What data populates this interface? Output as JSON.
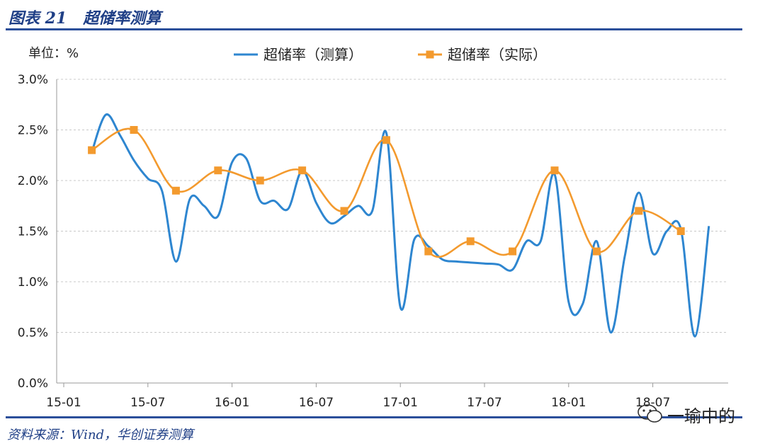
{
  "figure": {
    "title": "图表 21   超储率测算",
    "source": "资料来源：Wind，华创证券测算",
    "watermark": "一瑜中的"
  },
  "colors": {
    "estimated": "#2e86d0",
    "actual": "#f39a2e",
    "frame": "#2b4f9a",
    "grid": "#c8c8c8"
  },
  "chart_data": {
    "type": "line",
    "unit_label": "单位：%",
    "ylim": [
      0,
      3
    ],
    "yticks": [
      "0.0%",
      "0.5%",
      "1.0%",
      "1.5%",
      "2.0%",
      "2.5%",
      "3.0%"
    ],
    "xticks": [
      "15-01",
      "15-07",
      "16-01",
      "16-07",
      "17-01",
      "17-07",
      "18-01",
      "18-07"
    ],
    "grid": "horizontal dashed",
    "legend_position": "top-center",
    "series": [
      {
        "name": "超储率（测算）",
        "style": "line",
        "color": "#2e86d0",
        "points": [
          [
            "2015-03",
            2.28
          ],
          [
            "2015-04",
            2.65
          ],
          [
            "2015-05",
            2.45
          ],
          [
            "2015-06",
            2.2
          ],
          [
            "2015-07",
            2.02
          ],
          [
            "2015-08",
            1.9
          ],
          [
            "2015-09",
            1.2
          ],
          [
            "2015-10",
            1.82
          ],
          [
            "2015-11",
            1.75
          ],
          [
            "2015-12",
            1.65
          ],
          [
            "2016-01",
            2.18
          ],
          [
            "2016-02",
            2.22
          ],
          [
            "2016-03",
            1.8
          ],
          [
            "2016-04",
            1.8
          ],
          [
            "2016-05",
            1.72
          ],
          [
            "2016-06",
            2.1
          ],
          [
            "2016-07",
            1.78
          ],
          [
            "2016-08",
            1.58
          ],
          [
            "2016-09",
            1.65
          ],
          [
            "2016-10",
            1.75
          ],
          [
            "2016-11",
            1.7
          ],
          [
            "2016-12",
            2.47
          ],
          [
            "2017-01",
            0.75
          ],
          [
            "2017-02",
            1.42
          ],
          [
            "2017-03",
            1.35
          ],
          [
            "2017-04",
            1.22
          ],
          [
            "2017-05",
            1.2
          ],
          [
            "2017-06",
            1.19
          ],
          [
            "2017-07",
            1.18
          ],
          [
            "2017-08",
            1.17
          ],
          [
            "2017-09",
            1.12
          ],
          [
            "2017-10",
            1.4
          ],
          [
            "2017-11",
            1.4
          ],
          [
            "2017-12",
            2.06
          ],
          [
            "2018-01",
            0.8
          ],
          [
            "2018-02",
            0.78
          ],
          [
            "2018-03",
            1.4
          ],
          [
            "2018-04",
            0.5
          ],
          [
            "2018-05",
            1.25
          ],
          [
            "2018-06",
            1.88
          ],
          [
            "2018-07",
            1.28
          ],
          [
            "2018-08",
            1.5
          ],
          [
            "2018-09",
            1.52
          ],
          [
            "2018-10",
            0.46
          ],
          [
            "2018-11",
            1.55
          ]
        ]
      },
      {
        "name": "超储率（实际）",
        "style": "line-marker",
        "marker": "square",
        "color": "#f39a2e",
        "points": [
          [
            "2015-03",
            2.3
          ],
          [
            "2015-06",
            2.5
          ],
          [
            "2015-09",
            1.9
          ],
          [
            "2015-12",
            2.1
          ],
          [
            "2016-03",
            2.0
          ],
          [
            "2016-06",
            2.1
          ],
          [
            "2016-09",
            1.7
          ],
          [
            "2016-12",
            2.4
          ],
          [
            "2017-03",
            1.3
          ],
          [
            "2017-06",
            1.4
          ],
          [
            "2017-09",
            1.3
          ],
          [
            "2017-12",
            2.1
          ],
          [
            "2018-03",
            1.3
          ],
          [
            "2018-06",
            1.7
          ],
          [
            "2018-09",
            1.5
          ]
        ]
      }
    ]
  }
}
